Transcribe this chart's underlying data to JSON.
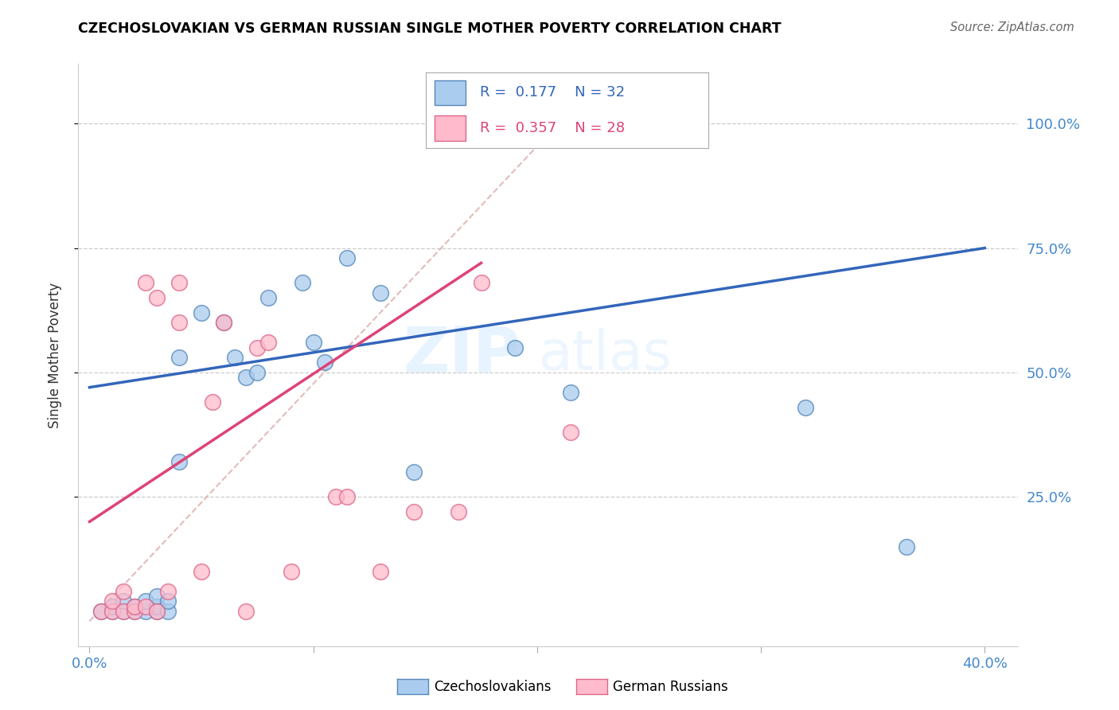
{
  "title": "CZECHOSLOVAKIAN VS GERMAN RUSSIAN SINGLE MOTHER POVERTY CORRELATION CHART",
  "source": "Source: ZipAtlas.com",
  "ylabel": "Single Mother Poverty",
  "xlim": [
    -0.005,
    0.415
  ],
  "ylim": [
    -0.05,
    1.12
  ],
  "xticks": [
    0.0,
    0.1,
    0.2,
    0.3,
    0.4
  ],
  "xtick_labels": [
    "0.0%",
    "",
    "",
    "",
    "40.0%"
  ],
  "ytick_positions": [
    0.25,
    0.5,
    0.75,
    1.0
  ],
  "ytick_labels": [
    "25.0%",
    "50.0%",
    "75.0%",
    "100.0%"
  ],
  "blue_R": "0.177",
  "blue_N": "32",
  "pink_R": "0.357",
  "pink_N": "28",
  "blue_marker_color": "#AACCEE",
  "pink_marker_color": "#FFBBCC",
  "blue_edge_color": "#5588BB",
  "pink_edge_color": "#DD6688",
  "blue_line_color": "#3366BB",
  "pink_line_color": "#DD4477",
  "label_color": "#4488CC",
  "legend1_label": "Czechoslovakians",
  "legend2_label": "German Russians",
  "watermark_zip": "ZIP",
  "watermark_atlas": "atlas",
  "blue_line_x0": 0.0,
  "blue_line_y0": 0.47,
  "blue_line_x1": 0.4,
  "blue_line_y1": 0.75,
  "pink_line_x0": 0.0,
  "pink_line_y0": 0.2,
  "pink_line_x1": 0.175,
  "pink_line_y1": 0.72,
  "dash_line_x0": 0.0,
  "dash_line_y0": 0.0,
  "dash_line_x1": 0.22,
  "dash_line_y1": 1.05,
  "blue_scatter_x": [
    0.005,
    0.01,
    0.01,
    0.015,
    0.015,
    0.02,
    0.02,
    0.025,
    0.025,
    0.03,
    0.03,
    0.03,
    0.035,
    0.035,
    0.04,
    0.04,
    0.05,
    0.06,
    0.065,
    0.07,
    0.075,
    0.08,
    0.095,
    0.1,
    0.105,
    0.115,
    0.13,
    0.145,
    0.19,
    0.215,
    0.32,
    0.365
  ],
  "blue_scatter_y": [
    0.02,
    0.02,
    0.03,
    0.02,
    0.04,
    0.02,
    0.03,
    0.02,
    0.04,
    0.02,
    0.03,
    0.05,
    0.02,
    0.04,
    0.32,
    0.53,
    0.62,
    0.6,
    0.53,
    0.49,
    0.5,
    0.65,
    0.68,
    0.56,
    0.52,
    0.73,
    0.66,
    0.3,
    0.55,
    0.46,
    0.43,
    0.15
  ],
  "pink_scatter_x": [
    0.005,
    0.01,
    0.01,
    0.015,
    0.015,
    0.02,
    0.02,
    0.025,
    0.025,
    0.03,
    0.03,
    0.035,
    0.04,
    0.04,
    0.05,
    0.055,
    0.06,
    0.07,
    0.075,
    0.08,
    0.09,
    0.11,
    0.115,
    0.13,
    0.145,
    0.165,
    0.175,
    0.215
  ],
  "pink_scatter_y": [
    0.02,
    0.02,
    0.04,
    0.02,
    0.06,
    0.02,
    0.03,
    0.03,
    0.68,
    0.02,
    0.65,
    0.06,
    0.6,
    0.68,
    0.1,
    0.44,
    0.6,
    0.02,
    0.55,
    0.56,
    0.1,
    0.25,
    0.25,
    0.1,
    0.22,
    0.22,
    0.68,
    0.38
  ]
}
